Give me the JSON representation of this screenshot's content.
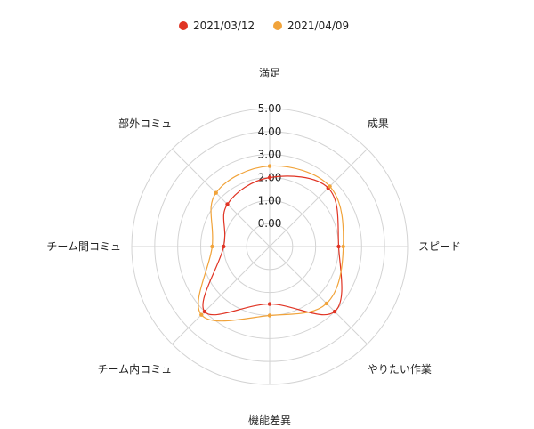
{
  "chart_data": {
    "type": "radar",
    "axes": [
      "満足",
      "成果",
      "スピード",
      "やりたい作業",
      "機能差異",
      "チーム内コミュ",
      "チーム間コミュ",
      "部外コミュ"
    ],
    "tick_labels": [
      "0.00",
      "1.00",
      "2.00",
      "3.00",
      "4.00",
      "5.00"
    ],
    "rlim": [
      -1,
      5
    ],
    "grid": true,
    "legend_position": "top",
    "series": [
      {
        "name": "2021/03/12",
        "color": "#e03424",
        "values": [
          2.0,
          2.6,
          2.0,
          3.0,
          1.5,
          3.0,
          1.0,
          1.6
        ]
      },
      {
        "name": "2021/04/09",
        "color": "#f1a33a",
        "values": [
          2.5,
          2.7,
          2.2,
          2.5,
          2.0,
          3.2,
          1.5,
          2.3
        ]
      }
    ]
  }
}
